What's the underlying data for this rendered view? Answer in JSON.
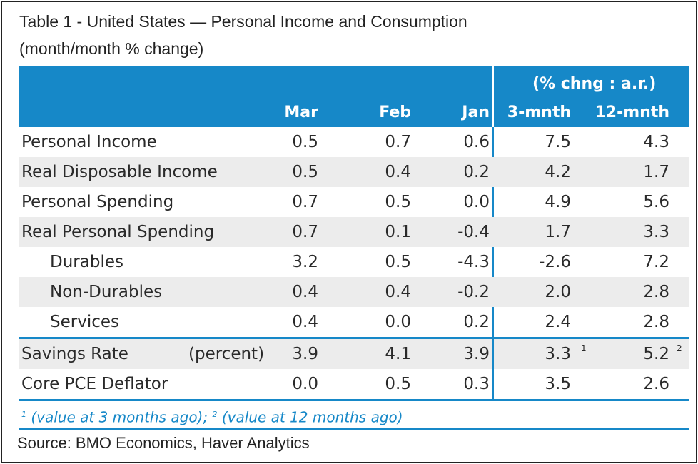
{
  "title": {
    "line1": "Table 1 - United States — Personal Income and Consumption",
    "line2": "(month/month % change)"
  },
  "header": {
    "annualized": "(% chng : a.r.)",
    "columns": [
      "Mar",
      "Feb",
      "Jan",
      "3-mnth",
      "12-mnth"
    ]
  },
  "rows": [
    {
      "label": "Personal Income",
      "values": [
        "0.5",
        "0.7",
        "0.6",
        "7.5",
        "4.3"
      ]
    },
    {
      "label": "Real Disposable Income",
      "values": [
        "0.5",
        "0.4",
        "0.2",
        "4.2",
        "1.7"
      ]
    },
    {
      "label": "Personal Spending",
      "values": [
        "0.7",
        "0.5",
        "0.0",
        "4.9",
        "5.6"
      ]
    },
    {
      "label": "Real Personal Spending",
      "values": [
        "0.7",
        "0.1",
        "-0.4",
        "1.7",
        "3.3"
      ]
    },
    {
      "label": "Durables",
      "values": [
        "3.2",
        "0.5",
        "-4.3",
        "-2.6",
        "7.2"
      ]
    },
    {
      "label": "Non-Durables",
      "values": [
        "0.4",
        "0.4",
        "-0.2",
        "2.0",
        "2.8"
      ]
    },
    {
      "label": "Services",
      "values": [
        "0.4",
        "0.0",
        "0.2",
        "2.4",
        "2.8"
      ]
    }
  ],
  "savings": {
    "label": "Savings Rate",
    "unit": "(percent)",
    "values": [
      "3.9",
      "4.1",
      "3.9",
      "3.3",
      "5.2"
    ],
    "note_3m": "1",
    "note_12m": "2"
  },
  "core_pce": {
    "label": "Core PCE Deflator",
    "values": [
      "0.0",
      "0.5",
      "0.3",
      "3.5",
      "2.6"
    ]
  },
  "footnote": {
    "sup1": "1",
    "text1": " (value at 3 months ago); ",
    "sup2": "2",
    "text2": " (value at 12 months ago)"
  },
  "source": "Source: BMO Economics, Haver Analytics",
  "colors": {
    "header_bg": "#1688c8",
    "row_shade": "#ececec",
    "accent": "#1688c8"
  }
}
